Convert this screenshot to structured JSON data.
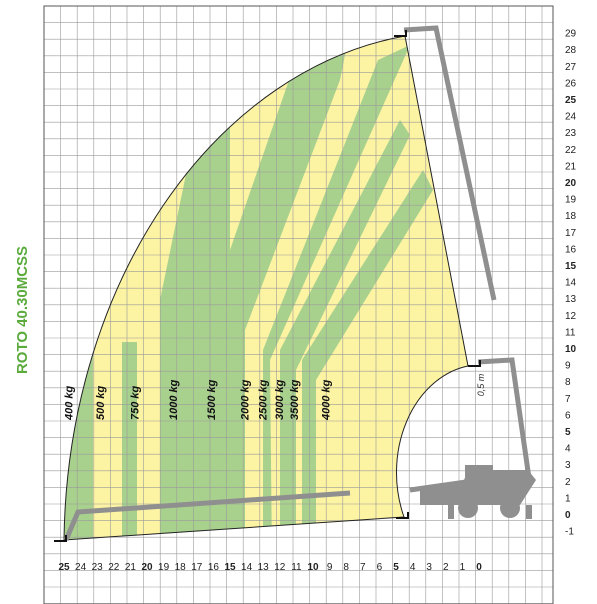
{
  "chart_data": {
    "type": "load-chart",
    "title": "ROTO 40.30MCSS",
    "colors": {
      "green": "#a9d18e",
      "yellow": "#fcf3a3",
      "boom": "#8f8f8f",
      "grid": "#9a9a9a",
      "title": "#5aaa3c"
    },
    "x_ticks": [
      {
        "label": "25",
        "bold": true
      },
      {
        "label": "24",
        "bold": false
      },
      {
        "label": "23",
        "bold": false
      },
      {
        "label": "22",
        "bold": false
      },
      {
        "label": "21",
        "bold": false
      },
      {
        "label": "20",
        "bold": true
      },
      {
        "label": "19",
        "bold": false
      },
      {
        "label": "18",
        "bold": false
      },
      {
        "label": "17",
        "bold": false
      },
      {
        "label": "16",
        "bold": false
      },
      {
        "label": "15",
        "bold": true
      },
      {
        "label": "14",
        "bold": false
      },
      {
        "label": "13",
        "bold": false
      },
      {
        "label": "12",
        "bold": false
      },
      {
        "label": "11",
        "bold": false
      },
      {
        "label": "10",
        "bold": true
      },
      {
        "label": "9",
        "bold": false
      },
      {
        "label": "8",
        "bold": false
      },
      {
        "label": "7",
        "bold": false
      },
      {
        "label": "6",
        "bold": false
      },
      {
        "label": "5",
        "bold": true
      },
      {
        "label": "4",
        "bold": false
      },
      {
        "label": "3",
        "bold": false
      },
      {
        "label": "2",
        "bold": false
      },
      {
        "label": "1",
        "bold": false
      },
      {
        "label": "0",
        "bold": true
      }
    ],
    "y_ticks": [
      {
        "label": "29",
        "bold": false
      },
      {
        "label": "28",
        "bold": false
      },
      {
        "label": "27",
        "bold": false
      },
      {
        "label": "26",
        "bold": false
      },
      {
        "label": "25",
        "bold": true
      },
      {
        "label": "24",
        "bold": false
      },
      {
        "label": "23",
        "bold": false
      },
      {
        "label": "22",
        "bold": false
      },
      {
        "label": "21",
        "bold": false
      },
      {
        "label": "20",
        "bold": true
      },
      {
        "label": "19",
        "bold": false
      },
      {
        "label": "18",
        "bold": false
      },
      {
        "label": "17",
        "bold": false
      },
      {
        "label": "16",
        "bold": false
      },
      {
        "label": "15",
        "bold": true
      },
      {
        "label": "14",
        "bold": false
      },
      {
        "label": "13",
        "bold": false
      },
      {
        "label": "12",
        "bold": false
      },
      {
        "label": "11",
        "bold": false
      },
      {
        "label": "10",
        "bold": true
      },
      {
        "label": "9",
        "bold": false
      },
      {
        "label": "8",
        "bold": false
      },
      {
        "label": "7",
        "bold": false
      },
      {
        "label": "6",
        "bold": false
      },
      {
        "label": "5",
        "bold": true
      },
      {
        "label": "4",
        "bold": false
      },
      {
        "label": "3",
        "bold": false
      },
      {
        "label": "2",
        "bold": false
      },
      {
        "label": "1",
        "bold": false
      },
      {
        "label": "0",
        "bold": true
      },
      {
        "label": "-1",
        "bold": false
      }
    ],
    "load_zones": [
      {
        "label": "400 kg",
        "reach_m": 24.5
      },
      {
        "label": "500 kg",
        "reach_m": 22.6
      },
      {
        "label": "750 kg",
        "reach_m": 20.5
      },
      {
        "label": "1000 kg",
        "reach_m": 18.2
      },
      {
        "label": "1500 kg",
        "reach_m": 15.9
      },
      {
        "label": "2000 kg",
        "reach_m": 13.9
      },
      {
        "label": "2500 kg",
        "reach_m": 12.8
      },
      {
        "label": "3000 kg",
        "reach_m": 11.8
      },
      {
        "label": "3500 kg",
        "reach_m": 10.9
      },
      {
        "label": "4000 kg",
        "reach_m": 9.0
      }
    ],
    "annotation": "0,5 m"
  }
}
